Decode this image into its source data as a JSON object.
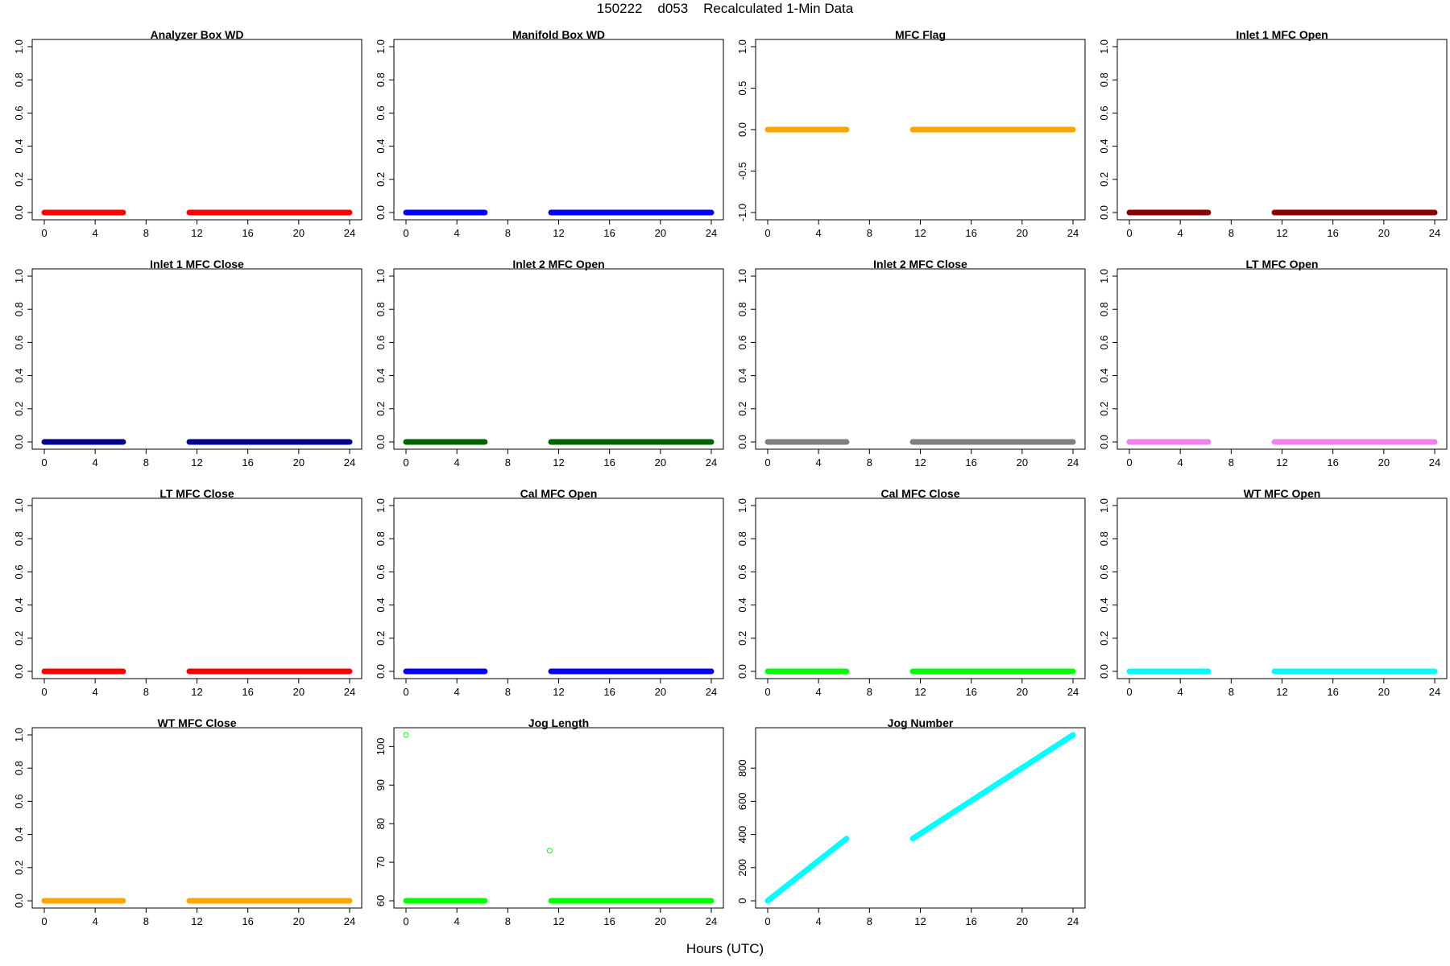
{
  "page": {
    "title": "150222    d053    Recalculated 1-Min Data",
    "xlabel": "Hours (UTC)"
  },
  "chart_data": [
    {
      "type": "scatter",
      "title": "Analyzer Box WD",
      "color": "#ff0000",
      "xlim": [
        0,
        24
      ],
      "xticks": [
        0,
        4,
        8,
        12,
        16,
        20,
        24
      ],
      "ylim": [
        0,
        1
      ],
      "yticks": [
        0,
        0.2,
        0.4,
        0.6,
        0.8,
        1.0
      ],
      "ytick_labels": [
        "0.0",
        "0.2",
        "0.4",
        "0.6",
        "0.8",
        "1.0"
      ],
      "segments": [
        {
          "x": [
            0,
            6.2
          ],
          "y": [
            0,
            0
          ]
        },
        {
          "x": [
            11.4,
            24
          ],
          "y": [
            0,
            0
          ]
        }
      ],
      "points": []
    },
    {
      "type": "scatter",
      "title": "Manifold Box WD",
      "color": "#0000ff",
      "xlim": [
        0,
        24
      ],
      "xticks": [
        0,
        4,
        8,
        12,
        16,
        20,
        24
      ],
      "ylim": [
        0,
        1
      ],
      "yticks": [
        0,
        0.2,
        0.4,
        0.6,
        0.8,
        1.0
      ],
      "ytick_labels": [
        "0.0",
        "0.2",
        "0.4",
        "0.6",
        "0.8",
        "1.0"
      ],
      "segments": [
        {
          "x": [
            0,
            6.2
          ],
          "y": [
            0,
            0
          ]
        },
        {
          "x": [
            11.4,
            24
          ],
          "y": [
            0,
            0
          ]
        }
      ],
      "points": []
    },
    {
      "type": "scatter",
      "title": "MFC Flag",
      "color": "#ffa500",
      "xlim": [
        0,
        24
      ],
      "xticks": [
        0,
        4,
        8,
        12,
        16,
        20,
        24
      ],
      "ylim": [
        -1,
        1
      ],
      "yticks": [
        -1,
        -0.5,
        0,
        0.5,
        1.0
      ],
      "ytick_labels": [
        "-1.0",
        "-0.5",
        "0.0",
        "0.5",
        "1.0"
      ],
      "segments": [
        {
          "x": [
            0,
            6.2
          ],
          "y": [
            0,
            0
          ]
        },
        {
          "x": [
            11.4,
            24
          ],
          "y": [
            0,
            0
          ]
        }
      ],
      "points": []
    },
    {
      "type": "scatter",
      "title": "Inlet 1 MFC Open",
      "color": "#8b0000",
      "xlim": [
        0,
        24
      ],
      "xticks": [
        0,
        4,
        8,
        12,
        16,
        20,
        24
      ],
      "ylim": [
        0,
        1
      ],
      "yticks": [
        0,
        0.2,
        0.4,
        0.6,
        0.8,
        1.0
      ],
      "ytick_labels": [
        "0.0",
        "0.2",
        "0.4",
        "0.6",
        "0.8",
        "1.0"
      ],
      "segments": [
        {
          "x": [
            0,
            6.2
          ],
          "y": [
            0,
            0
          ]
        },
        {
          "x": [
            11.4,
            24
          ],
          "y": [
            0,
            0
          ]
        }
      ],
      "points": []
    },
    {
      "type": "scatter",
      "title": "Inlet 1 MFC Close",
      "color": "#00008b",
      "xlim": [
        0,
        24
      ],
      "xticks": [
        0,
        4,
        8,
        12,
        16,
        20,
        24
      ],
      "ylim": [
        0,
        1
      ],
      "yticks": [
        0,
        0.2,
        0.4,
        0.6,
        0.8,
        1.0
      ],
      "ytick_labels": [
        "0.0",
        "0.2",
        "0.4",
        "0.6",
        "0.8",
        "1.0"
      ],
      "segments": [
        {
          "x": [
            0,
            6.2
          ],
          "y": [
            0,
            0
          ]
        },
        {
          "x": [
            11.4,
            24
          ],
          "y": [
            0,
            0
          ]
        }
      ],
      "points": []
    },
    {
      "type": "scatter",
      "title": "Inlet 2 MFC Open",
      "color": "#006400",
      "xlim": [
        0,
        24
      ],
      "xticks": [
        0,
        4,
        8,
        12,
        16,
        20,
        24
      ],
      "ylim": [
        0,
        1
      ],
      "yticks": [
        0,
        0.2,
        0.4,
        0.6,
        0.8,
        1.0
      ],
      "ytick_labels": [
        "0.0",
        "0.2",
        "0.4",
        "0.6",
        "0.8",
        "1.0"
      ],
      "segments": [
        {
          "x": [
            0,
            6.2
          ],
          "y": [
            0,
            0
          ]
        },
        {
          "x": [
            11.4,
            24
          ],
          "y": [
            0,
            0
          ]
        }
      ],
      "points": []
    },
    {
      "type": "scatter",
      "title": "Inlet 2 MFC Close",
      "color": "#808080",
      "xlim": [
        0,
        24
      ],
      "xticks": [
        0,
        4,
        8,
        12,
        16,
        20,
        24
      ],
      "ylim": [
        0,
        1
      ],
      "yticks": [
        0,
        0.2,
        0.4,
        0.6,
        0.8,
        1.0
      ],
      "ytick_labels": [
        "0.0",
        "0.2",
        "0.4",
        "0.6",
        "0.8",
        "1.0"
      ],
      "segments": [
        {
          "x": [
            0,
            6.2
          ],
          "y": [
            0,
            0
          ]
        },
        {
          "x": [
            11.4,
            24
          ],
          "y": [
            0,
            0
          ]
        }
      ],
      "points": []
    },
    {
      "type": "scatter",
      "title": "LT MFC Open",
      "color": "#ee82ee",
      "xlim": [
        0,
        24
      ],
      "xticks": [
        0,
        4,
        8,
        12,
        16,
        20,
        24
      ],
      "ylim": [
        0,
        1
      ],
      "yticks": [
        0,
        0.2,
        0.4,
        0.6,
        0.8,
        1.0
      ],
      "ytick_labels": [
        "0.0",
        "0.2",
        "0.4",
        "0.6",
        "0.8",
        "1.0"
      ],
      "segments": [
        {
          "x": [
            0,
            6.2
          ],
          "y": [
            0,
            0
          ]
        },
        {
          "x": [
            11.4,
            24
          ],
          "y": [
            0,
            0
          ]
        }
      ],
      "points": []
    },
    {
      "type": "scatter",
      "title": "LT MFC Close",
      "color": "#ff0000",
      "xlim": [
        0,
        24
      ],
      "xticks": [
        0,
        4,
        8,
        12,
        16,
        20,
        24
      ],
      "ylim": [
        0,
        1
      ],
      "yticks": [
        0,
        0.2,
        0.4,
        0.6,
        0.8,
        1.0
      ],
      "ytick_labels": [
        "0.0",
        "0.2",
        "0.4",
        "0.6",
        "0.8",
        "1.0"
      ],
      "segments": [
        {
          "x": [
            0,
            6.2
          ],
          "y": [
            0,
            0
          ]
        },
        {
          "x": [
            11.4,
            24
          ],
          "y": [
            0,
            0
          ]
        }
      ],
      "points": []
    },
    {
      "type": "scatter",
      "title": "Cal MFC Open",
      "color": "#0000ff",
      "xlim": [
        0,
        24
      ],
      "xticks": [
        0,
        4,
        8,
        12,
        16,
        20,
        24
      ],
      "ylim": [
        0,
        1
      ],
      "yticks": [
        0,
        0.2,
        0.4,
        0.6,
        0.8,
        1.0
      ],
      "ytick_labels": [
        "0.0",
        "0.2",
        "0.4",
        "0.6",
        "0.8",
        "1.0"
      ],
      "segments": [
        {
          "x": [
            0,
            6.2
          ],
          "y": [
            0,
            0
          ]
        },
        {
          "x": [
            11.4,
            24
          ],
          "y": [
            0,
            0
          ]
        }
      ],
      "points": []
    },
    {
      "type": "scatter",
      "title": "Cal MFC Close",
      "color": "#00ff00",
      "xlim": [
        0,
        24
      ],
      "xticks": [
        0,
        4,
        8,
        12,
        16,
        20,
        24
      ],
      "ylim": [
        0,
        1
      ],
      "yticks": [
        0,
        0.2,
        0.4,
        0.6,
        0.8,
        1.0
      ],
      "ytick_labels": [
        "0.0",
        "0.2",
        "0.4",
        "0.6",
        "0.8",
        "1.0"
      ],
      "segments": [
        {
          "x": [
            0,
            6.2
          ],
          "y": [
            0,
            0
          ]
        },
        {
          "x": [
            11.4,
            24
          ],
          "y": [
            0,
            0
          ]
        }
      ],
      "points": []
    },
    {
      "type": "scatter",
      "title": "WT MFC Open",
      "color": "#00ffff",
      "xlim": [
        0,
        24
      ],
      "xticks": [
        0,
        4,
        8,
        12,
        16,
        20,
        24
      ],
      "ylim": [
        0,
        1
      ],
      "yticks": [
        0,
        0.2,
        0.4,
        0.6,
        0.8,
        1.0
      ],
      "ytick_labels": [
        "0.0",
        "0.2",
        "0.4",
        "0.6",
        "0.8",
        "1.0"
      ],
      "segments": [
        {
          "x": [
            0,
            6.2
          ],
          "y": [
            0,
            0
          ]
        },
        {
          "x": [
            11.4,
            24
          ],
          "y": [
            0,
            0
          ]
        }
      ],
      "points": []
    },
    {
      "type": "scatter",
      "title": "WT MFC Close",
      "color": "#ffa500",
      "xlim": [
        0,
        24
      ],
      "xticks": [
        0,
        4,
        8,
        12,
        16,
        20,
        24
      ],
      "ylim": [
        0,
        1
      ],
      "yticks": [
        0,
        0.2,
        0.4,
        0.6,
        0.8,
        1.0
      ],
      "ytick_labels": [
        "0.0",
        "0.2",
        "0.4",
        "0.6",
        "0.8",
        "1.0"
      ],
      "segments": [
        {
          "x": [
            0,
            6.2
          ],
          "y": [
            0,
            0
          ]
        },
        {
          "x": [
            11.4,
            24
          ],
          "y": [
            0,
            0
          ]
        }
      ],
      "points": []
    },
    {
      "type": "scatter",
      "title": "Jog Length",
      "color": "#00ff00",
      "xlim": [
        0,
        24
      ],
      "xticks": [
        0,
        4,
        8,
        12,
        16,
        20,
        24
      ],
      "ylim": [
        60,
        103
      ],
      "yticks": [
        60,
        70,
        80,
        90,
        100
      ],
      "ytick_labels": [
        "60",
        "70",
        "80",
        "90",
        "100"
      ],
      "segments": [
        {
          "x": [
            0,
            6.2
          ],
          "y": [
            60,
            60
          ]
        },
        {
          "x": [
            11.4,
            24
          ],
          "y": [
            60,
            60
          ]
        }
      ],
      "points": [
        {
          "x": 0,
          "y": 103
        },
        {
          "x": 11.3,
          "y": 73
        }
      ]
    },
    {
      "type": "scatter",
      "title": "Jog Number",
      "color": "#00ffff",
      "xlim": [
        0,
        24
      ],
      "xticks": [
        0,
        4,
        8,
        12,
        16,
        20,
        24
      ],
      "ylim": [
        0,
        1000
      ],
      "yticks": [
        0,
        200,
        400,
        600,
        800
      ],
      "ytick_labels": [
        "0",
        "200",
        "400",
        "600",
        "800"
      ],
      "segments": [
        {
          "x": [
            0,
            6.2
          ],
          "y": [
            0,
            375
          ]
        },
        {
          "x": [
            11.4,
            24
          ],
          "y": [
            375,
            1000
          ]
        }
      ],
      "points": []
    }
  ]
}
